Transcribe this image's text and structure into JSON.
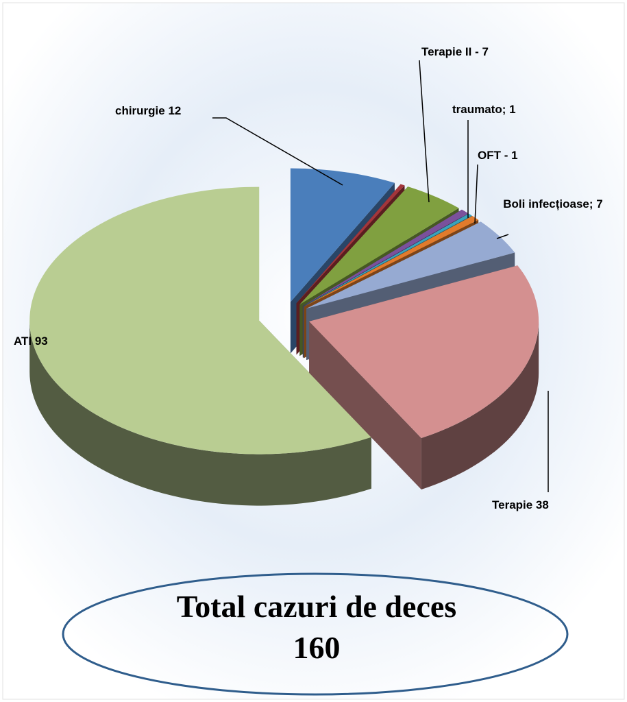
{
  "chart_data": {
    "type": "pie3d",
    "categories": [
      "chirurgie  12",
      null,
      "Terapie II - 7",
      "traumato; 1",
      null,
      "OFT - 1",
      "Boli infecțioase; 7",
      "Terapie  38",
      "ATI  93"
    ],
    "values": [
      12,
      0.5,
      7,
      1,
      0.5,
      1,
      7,
      38,
      93
    ],
    "colors": [
      "#4a7ebb",
      "#a3363b",
      "#80a040",
      "#7b519c",
      "#3aa3bb",
      "#e27b2c",
      "#96aad2",
      "#d49090",
      "#b9cd92"
    ],
    "annotation": [
      "Total cazuri de deces",
      "160"
    ]
  }
}
